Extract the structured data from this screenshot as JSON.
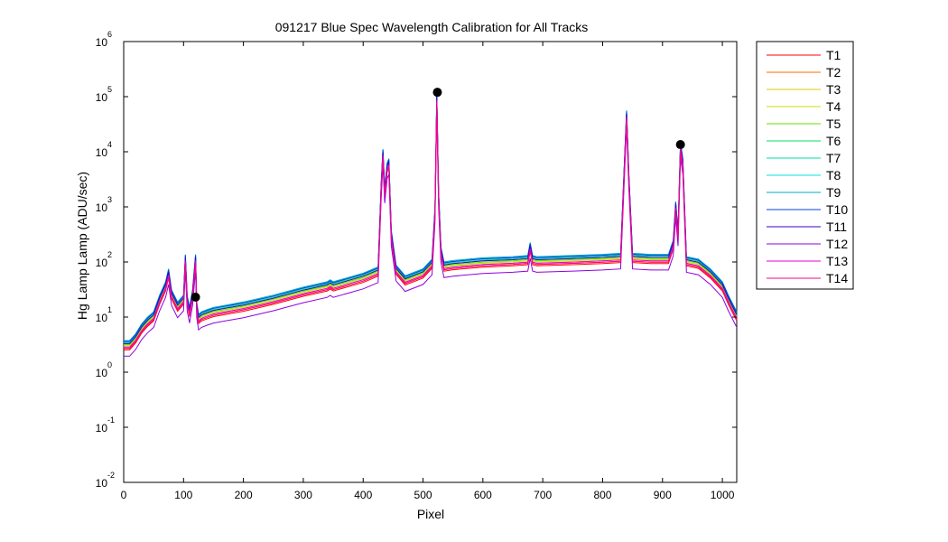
{
  "chart_data": {
    "type": "line",
    "title": "091217 Blue Spec Wavelength Calibration for All Tracks",
    "xlabel": "Pixel",
    "ylabel": "Hg Lamp Lamp (ADU/sec)",
    "xlim": [
      0,
      1024
    ],
    "ylim": [
      0.01,
      1000000
    ],
    "yscale": "log",
    "grid": false,
    "legend_position": "outside-right",
    "x_ticks": [
      "0",
      "100",
      "200",
      "300",
      "400",
      "500",
      "600",
      "700",
      "800",
      "900",
      "1000"
    ],
    "y_ticks": [
      {
        "base": "10",
        "exp": "-2"
      },
      {
        "base": "10",
        "exp": "-1"
      },
      {
        "base": "10",
        "exp": "0"
      },
      {
        "base": "10",
        "exp": "1"
      },
      {
        "base": "10",
        "exp": "2"
      },
      {
        "base": "10",
        "exp": "3"
      },
      {
        "base": "10",
        "exp": "4"
      },
      {
        "base": "10",
        "exp": "5"
      },
      {
        "base": "10",
        "exp": "6"
      }
    ],
    "x": [
      0,
      10,
      20,
      30,
      40,
      50,
      60,
      70,
      75,
      80,
      90,
      100,
      103,
      106,
      110,
      115,
      120,
      122,
      125,
      130,
      140,
      150,
      200,
      250,
      300,
      340,
      345,
      350,
      400,
      425,
      430,
      433,
      436,
      440,
      443,
      447,
      455,
      470,
      500,
      515,
      520,
      523,
      526,
      530,
      535,
      550,
      600,
      650,
      675,
      679,
      683,
      690,
      750,
      800,
      830,
      836,
      840,
      844,
      850,
      880,
      910,
      918,
      922,
      926,
      930,
      934,
      940,
      960,
      980,
      1000,
      1010,
      1024
    ],
    "baseline": [
      3,
      3,
      4,
      6,
      8,
      10,
      20,
      35,
      60,
      25,
      15,
      20,
      110,
      20,
      12,
      25,
      110,
      15,
      9,
      10,
      11,
      12,
      15,
      20,
      28,
      35,
      38,
      35,
      50,
      65,
      2000,
      9000,
      1800,
      5000,
      6000,
      300,
      70,
      45,
      60,
      90,
      800,
      90000,
      1500,
      150,
      80,
      85,
      95,
      100,
      105,
      180,
      105,
      100,
      105,
      110,
      115,
      4000,
      45000,
      3000,
      115,
      110,
      110,
      200,
      1000,
      300,
      12000,
      6000,
      100,
      90,
      60,
      35,
      20,
      10
    ],
    "series": [
      {
        "name": "T1",
        "offset": 0.85
      },
      {
        "name": "T2",
        "offset": 0.9
      },
      {
        "name": "T3",
        "offset": 0.95
      },
      {
        "name": "T4",
        "offset": 1.0
      },
      {
        "name": "T5",
        "offset": 1.05
      },
      {
        "name": "T6",
        "offset": 1.1
      },
      {
        "name": "T7",
        "offset": 1.15
      },
      {
        "name": "T8",
        "offset": 1.2
      },
      {
        "name": "T9",
        "offset": 1.25
      },
      {
        "name": "T10",
        "offset": 1.2
      },
      {
        "name": "T11",
        "offset": 1.1
      },
      {
        "name": "T12",
        "offset": 0.65
      },
      {
        "name": "T13",
        "offset": 0.95
      },
      {
        "name": "T14",
        "offset": 0.9
      }
    ],
    "series_colors": [
      "#ff0000",
      "#ff6a00",
      "#e0c800",
      "#c8e000",
      "#60e000",
      "#00e060",
      "#00e0a0",
      "#00e0e0",
      "#00a8c8",
      "#0040e0",
      "#4000c0",
      "#9000e0",
      "#e000e0",
      "#ff0080"
    ],
    "markers": [
      {
        "x": 120,
        "y": 23
      },
      {
        "x": 524,
        "y": 120000
      },
      {
        "x": 930,
        "y": 13500
      }
    ],
    "marker_color": "#000000"
  }
}
